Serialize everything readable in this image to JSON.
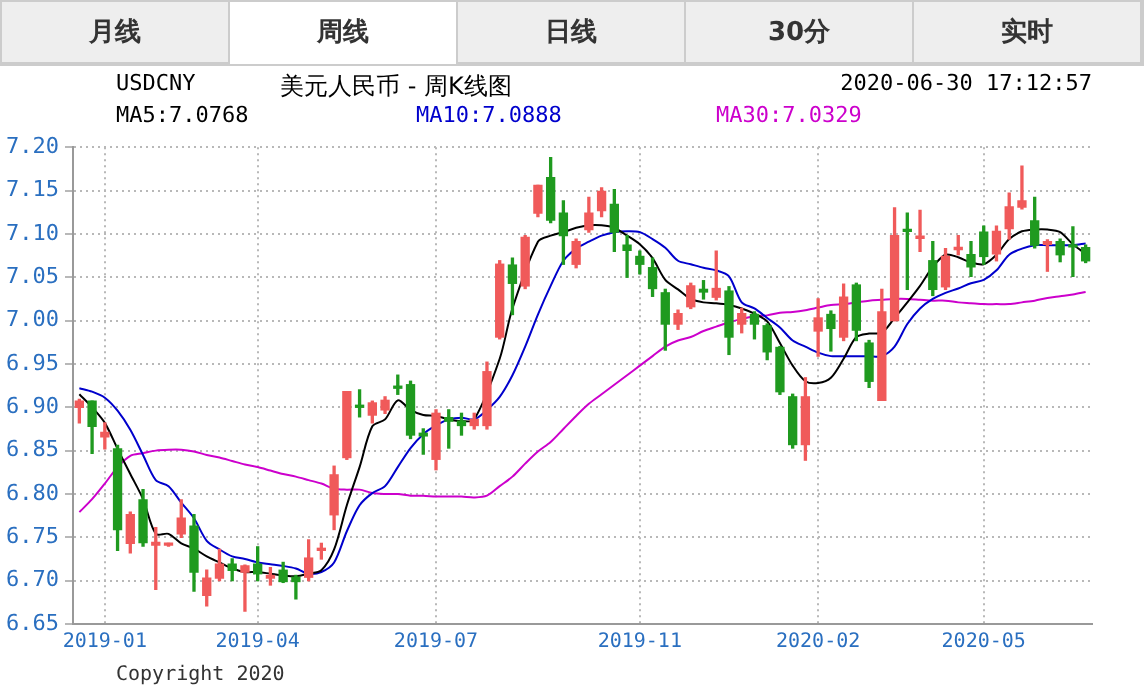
{
  "chart_data": {
    "type": "candlestick",
    "title": "美元人民币 - 周K线图",
    "annotations": [
      "月线",
      "周线",
      "日线",
      "30分",
      "实时",
      "USDCNY",
      "2020-06-30 17:12:57",
      "Copyright 2020"
    ],
    "categories": [
      null,
      null,
      "2019-01",
      null,
      null,
      null,
      null,
      null,
      null,
      null,
      null,
      null,
      null,
      null,
      "2019-04",
      null,
      null,
      null,
      null,
      null,
      null,
      null,
      null,
      null,
      null,
      null,
      null,
      null,
      "2019-07",
      null,
      null,
      null,
      null,
      null,
      null,
      null,
      null,
      null,
      null,
      null,
      null,
      null,
      null,
      null,
      "2019-11",
      null,
      null,
      null,
      null,
      null,
      null,
      null,
      null,
      null,
      null,
      null,
      null,
      null,
      "2020-02",
      null,
      null,
      null,
      null,
      null,
      null,
      null,
      null,
      null,
      null,
      null,
      null,
      "2020-05",
      null,
      null,
      null,
      null,
      null,
      null,
      null,
      null
    ],
    "ohlc": [
      [
        6.9,
        6.909,
        6.882,
        6.907
      ],
      [
        6.907,
        6.907,
        6.847,
        6.878
      ],
      [
        6.866,
        6.882,
        6.852,
        6.871
      ],
      [
        6.852,
        6.856,
        6.735,
        6.759
      ],
      [
        6.743,
        6.779,
        6.732,
        6.776
      ],
      [
        6.793,
        6.805,
        6.74,
        6.744
      ],
      [
        6.741,
        6.761,
        6.69,
        6.744
      ],
      [
        6.741,
        6.743,
        6.74,
        6.742
      ],
      [
        6.754,
        6.793,
        6.75,
        6.772
      ],
      [
        6.763,
        6.776,
        6.688,
        6.71
      ],
      [
        6.683,
        6.712,
        6.671,
        6.703
      ],
      [
        6.703,
        6.736,
        6.7,
        6.719
      ],
      [
        6.719,
        6.725,
        6.7,
        6.712
      ],
      [
        6.71,
        6.718,
        6.665,
        6.717
      ],
      [
        6.719,
        6.739,
        6.7,
        6.708
      ],
      [
        6.703,
        6.715,
        6.695,
        6.706
      ],
      [
        6.712,
        6.721,
        6.698,
        6.699
      ],
      [
        6.704,
        6.706,
        6.679,
        6.699
      ],
      [
        6.704,
        6.747,
        6.7,
        6.726
      ],
      [
        6.735,
        6.743,
        6.725,
        6.737
      ],
      [
        6.776,
        6.832,
        6.759,
        6.822
      ],
      [
        6.842,
        6.918,
        6.84,
        6.918
      ],
      [
        6.902,
        6.92,
        6.889,
        6.9
      ],
      [
        6.891,
        6.907,
        6.882,
        6.905
      ],
      [
        6.897,
        6.912,
        6.893,
        6.908
      ],
      [
        6.924,
        6.937,
        6.915,
        6.922
      ],
      [
        6.926,
        6.93,
        6.864,
        6.868
      ],
      [
        6.87,
        6.875,
        6.846,
        6.867
      ],
      [
        6.84,
        6.897,
        6.828,
        6.893
      ],
      [
        6.888,
        6.897,
        6.853,
        6.884
      ],
      [
        6.884,
        6.893,
        6.868,
        6.879
      ],
      [
        6.879,
        6.893,
        6.875,
        6.886
      ],
      [
        6.879,
        6.952,
        6.875,
        6.941
      ],
      [
        6.981,
        7.069,
        6.979,
        7.065
      ],
      [
        7.064,
        7.072,
        7.007,
        7.043
      ],
      [
        7.04,
        7.098,
        7.037,
        7.096
      ],
      [
        7.124,
        7.156,
        7.12,
        7.156
      ],
      [
        7.165,
        7.188,
        7.113,
        7.116
      ],
      [
        7.124,
        7.138,
        7.065,
        7.098
      ],
      [
        7.065,
        7.094,
        7.061,
        7.091
      ],
      [
        7.105,
        7.142,
        7.102,
        7.124
      ],
      [
        7.127,
        7.153,
        7.12,
        7.149
      ],
      [
        7.134,
        7.151,
        7.08,
        7.102
      ],
      [
        7.087,
        7.098,
        7.05,
        7.081
      ],
      [
        7.074,
        7.08,
        7.054,
        7.065
      ],
      [
        7.061,
        7.072,
        7.028,
        7.037
      ],
      [
        7.032,
        7.036,
        6.966,
        6.996
      ],
      [
        6.996,
        7.012,
        6.99,
        7.008
      ],
      [
        7.016,
        7.043,
        7.014,
        7.04
      ],
      [
        7.036,
        7.046,
        7.025,
        7.033
      ],
      [
        7.027,
        7.08,
        7.024,
        7.037
      ],
      [
        7.034,
        7.039,
        6.961,
        6.981
      ],
      [
        6.996,
        7.014,
        6.986,
        7.008
      ],
      [
        7.007,
        7.01,
        6.979,
        6.996
      ],
      [
        6.994,
        6.996,
        6.955,
        6.964
      ],
      [
        6.969,
        6.97,
        6.915,
        6.918
      ],
      [
        6.912,
        6.915,
        6.853,
        6.857
      ],
      [
        6.857,
        6.934,
        6.839,
        6.912
      ],
      [
        6.988,
        7.025,
        6.959,
        7.003
      ],
      [
        7.007,
        7.011,
        6.965,
        6.991
      ],
      [
        6.981,
        7.042,
        6.977,
        7.027
      ],
      [
        7.041,
        7.043,
        6.977,
        6.989
      ],
      [
        6.974,
        6.977,
        6.923,
        6.93
      ],
      [
        6.908,
        7.036,
        6.908,
        7.01
      ],
      [
        7.0,
        7.13,
        7.0,
        7.098
      ],
      [
        7.105,
        7.124,
        7.036,
        7.103
      ],
      [
        7.095,
        7.127,
        7.08,
        7.097
      ],
      [
        7.069,
        7.091,
        7.029,
        7.036
      ],
      [
        7.039,
        7.083,
        7.036,
        7.074
      ],
      [
        7.082,
        7.098,
        7.076,
        7.084
      ],
      [
        7.076,
        7.091,
        7.051,
        7.062
      ],
      [
        7.102,
        7.109,
        7.065,
        7.074
      ],
      [
        7.077,
        7.109,
        7.069,
        7.103
      ],
      [
        7.106,
        7.147,
        7.094,
        7.131
      ],
      [
        7.131,
        7.178,
        7.129,
        7.138
      ],
      [
        7.115,
        7.142,
        7.084,
        7.087
      ],
      [
        7.088,
        7.093,
        7.057,
        7.091
      ],
      [
        7.091,
        7.094,
        7.068,
        7.076
      ],
      [
        7.087,
        7.108,
        7.051,
        7.085
      ],
      [
        7.084,
        7.087,
        7.067,
        7.069
      ]
    ],
    "series": [
      {
        "name": "MA5:7.0768",
        "type": "line",
        "color": "#000000",
        "values": [
          6.915,
          6.9,
          6.882,
          6.852,
          6.823,
          6.794,
          6.754,
          6.754,
          6.743,
          6.737,
          6.728,
          6.721,
          6.714,
          6.71,
          6.71,
          6.708,
          6.706,
          6.705,
          6.708,
          6.712,
          6.736,
          6.787,
          6.831,
          6.878,
          6.886,
          6.908,
          6.897,
          6.891,
          6.89,
          6.886,
          6.884,
          6.886,
          null,
          6.956,
          7.014,
          null,
          7.091,
          7.098,
          7.102,
          7.107,
          7.11,
          7.11,
          7.107,
          7.098,
          7.088,
          7.072,
          7.047,
          7.036,
          7.025,
          7.021,
          7.02,
          7.018,
          7.014,
          7.008,
          6.999,
          6.974,
          6.948,
          6.93,
          6.928,
          6.934,
          6.956,
          6.981,
          6.985,
          6.986,
          7.003,
          7.021,
          7.04,
          7.062,
          7.076,
          7.073,
          7.067,
          7.065,
          7.076,
          7.094,
          7.103,
          7.105,
          7.105,
          7.102,
          7.088,
          7.077
        ]
      },
      {
        "name": "MA10:7.0888",
        "type": "line",
        "color": "#0000cc",
        "values": [
          6.922,
          6.918,
          6.911,
          6.896,
          6.874,
          6.845,
          6.816,
          6.809,
          6.79,
          6.772,
          6.746,
          6.736,
          6.728,
          6.725,
          6.721,
          6.719,
          6.717,
          6.714,
          6.708,
          6.71,
          6.721,
          6.757,
          6.787,
          6.801,
          6.809,
          6.831,
          6.853,
          6.869,
          6.879,
          6.886,
          6.888,
          6.886,
          6.897,
          6.912,
          6.937,
          6.97,
          7.007,
          7.04,
          7.069,
          7.083,
          7.091,
          7.098,
          7.102,
          7.103,
          7.102,
          7.094,
          7.084,
          7.069,
          7.065,
          7.061,
          7.058,
          7.051,
          7.021,
          7.014,
          7.003,
          6.992,
          6.977,
          6.97,
          6.963,
          6.959,
          6.959,
          6.959,
          6.959,
          6.959,
          6.97,
          6.996,
          7.014,
          7.025,
          7.032,
          7.037,
          7.043,
          7.047,
          7.058,
          7.076,
          7.083,
          7.087,
          7.087,
          7.087,
          7.087,
          7.089
        ]
      },
      {
        "name": "MA30:7.0329",
        "type": "line",
        "color": "#cc00cc",
        "values": [
          6.779,
          6.794,
          6.812,
          6.831,
          6.844,
          6.847,
          6.85,
          6.851,
          6.851,
          6.849,
          6.845,
          6.842,
          6.838,
          6.834,
          6.831,
          6.827,
          6.823,
          6.82,
          6.816,
          6.812,
          6.806,
          6.805,
          6.805,
          6.801,
          6.8,
          6.8,
          6.798,
          6.798,
          6.797,
          6.797,
          6.797,
          6.796,
          6.798,
          6.809,
          6.82,
          6.835,
          6.849,
          6.86,
          6.875,
          6.89,
          6.904,
          6.915,
          6.926,
          6.937,
          6.948,
          6.959,
          6.97,
          6.977,
          6.981,
          6.988,
          6.993,
          6.998,
          7.002,
          7.005,
          7.006,
          7.009,
          7.01,
          7.012,
          7.015,
          7.018,
          7.019,
          7.021,
          7.023,
          7.024,
          7.025,
          7.025,
          7.024,
          7.023,
          7.023,
          7.021,
          7.02,
          7.019,
          7.019,
          7.019,
          7.021,
          7.023,
          7.026,
          7.028,
          7.03,
          7.033
        ]
      }
    ],
    "ylim": [
      6.65,
      7.2
    ],
    "yticks": [
      {
        "value": 6.65,
        "label": "6.65"
      },
      {
        "value": 6.7,
        "label": "6.70"
      },
      {
        "value": 6.75,
        "label": "6.75"
      },
      {
        "value": 6.8,
        "label": "6.80"
      },
      {
        "value": 6.85,
        "label": "6.85"
      },
      {
        "value": 6.9,
        "label": "6.90"
      },
      {
        "value": 6.95,
        "label": "6.95"
      },
      {
        "value": 7.0,
        "label": "7.00"
      },
      {
        "value": 7.05,
        "label": "7.05"
      },
      {
        "value": 7.1,
        "label": "7.10"
      },
      {
        "value": 7.15,
        "label": "7.15"
      },
      {
        "value": 7.2,
        "label": "7.20"
      }
    ],
    "grid": true,
    "legend": "top"
  }
}
